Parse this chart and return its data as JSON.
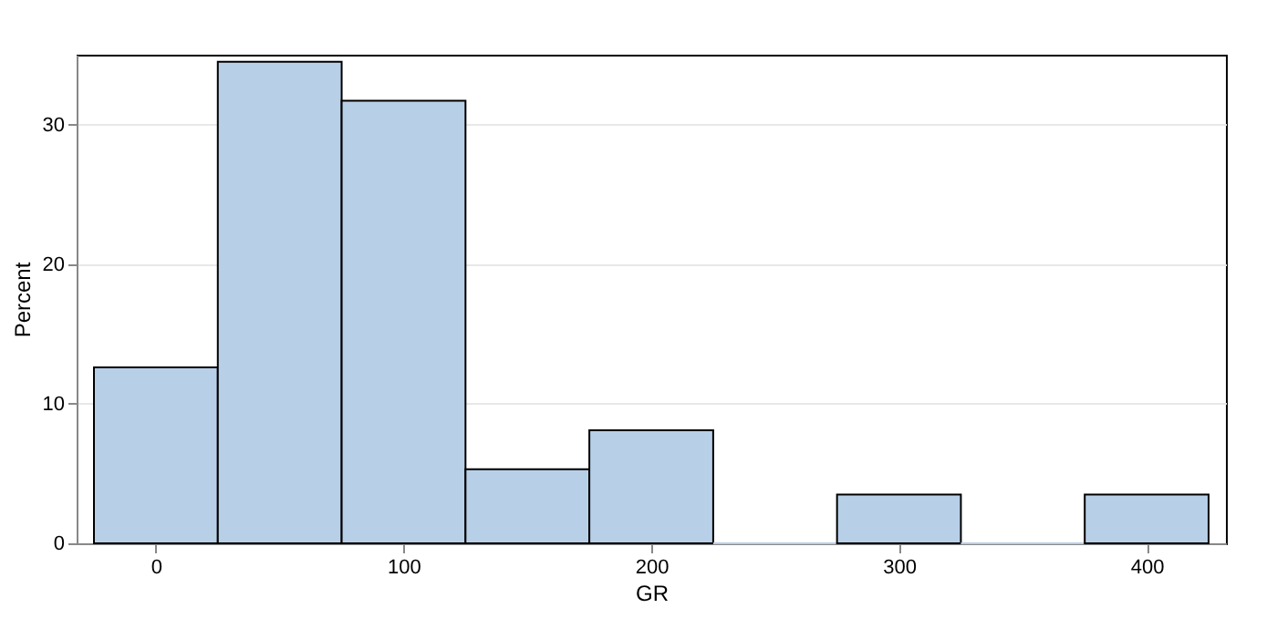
{
  "chart_data": {
    "type": "histogram",
    "xlabel": "GR",
    "ylabel": "Percent",
    "bins": [
      -25,
      25,
      75,
      125,
      175,
      225,
      275,
      325,
      375,
      425
    ],
    "values": [
      12.6,
      34.5,
      31.7,
      5.3,
      8.1,
      0,
      3.5,
      0,
      3.5
    ],
    "color": "#b8cfe8",
    "xlim": [
      -32,
      432
    ],
    "xticks": [
      0,
      100,
      200,
      300,
      400
    ],
    "ylim": [
      0,
      35
    ],
    "yticks": [
      0,
      10,
      20,
      30
    ],
    "grid": "y"
  }
}
